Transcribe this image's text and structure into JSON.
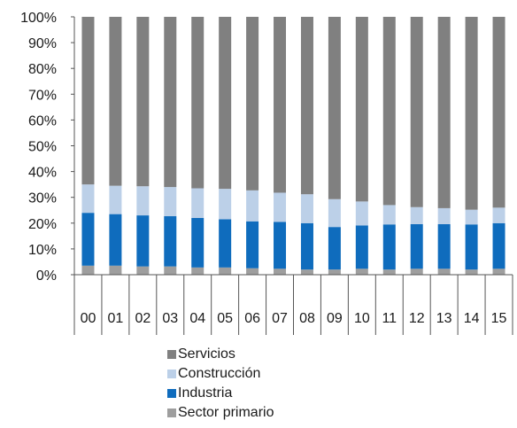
{
  "chart_data": {
    "type": "bar",
    "stacked": true,
    "categories": [
      "00",
      "01",
      "02",
      "03",
      "04",
      "05",
      "06",
      "07",
      "08",
      "09",
      "10",
      "11",
      "12",
      "13",
      "14",
      "15"
    ],
    "series": [
      {
        "name": "Sector primario",
        "color": "#9e9e9e",
        "values": [
          3.5,
          3.5,
          3.2,
          3.2,
          2.8,
          2.8,
          2.5,
          2.3,
          2.0,
          2.0,
          2.3,
          2.0,
          2.3,
          2.3,
          2.0,
          2.3
        ]
      },
      {
        "name": "Industria",
        "color": "#0f6cbd",
        "values": [
          20.5,
          20.0,
          19.8,
          19.5,
          19.2,
          18.7,
          18.2,
          18.2,
          18.0,
          16.5,
          16.8,
          17.5,
          17.3,
          17.3,
          17.5,
          17.7
        ]
      },
      {
        "name": "Construcción",
        "color": "#bcd0e8",
        "values": [
          11.0,
          11.0,
          11.3,
          11.3,
          11.5,
          11.8,
          12.0,
          11.3,
          11.2,
          10.8,
          9.3,
          7.5,
          6.6,
          6.2,
          5.7,
          6.0
        ]
      },
      {
        "name": "Servicios",
        "color": "#808080",
        "values": [
          65.0,
          65.5,
          65.7,
          66.0,
          66.5,
          66.7,
          67.3,
          68.2,
          68.8,
          70.7,
          71.6,
          73.0,
          73.8,
          74.2,
          74.8,
          74.0
        ]
      }
    ],
    "y_ticks": [
      "0%",
      "10%",
      "20%",
      "30%",
      "40%",
      "50%",
      "60%",
      "70%",
      "80%",
      "90%",
      "100%"
    ],
    "ylim": [
      0,
      100
    ],
    "legend_order": [
      "Servicios",
      "Construcción",
      "Industria",
      "Sector primario"
    ],
    "legend_position": "bottom",
    "grid": false
  }
}
